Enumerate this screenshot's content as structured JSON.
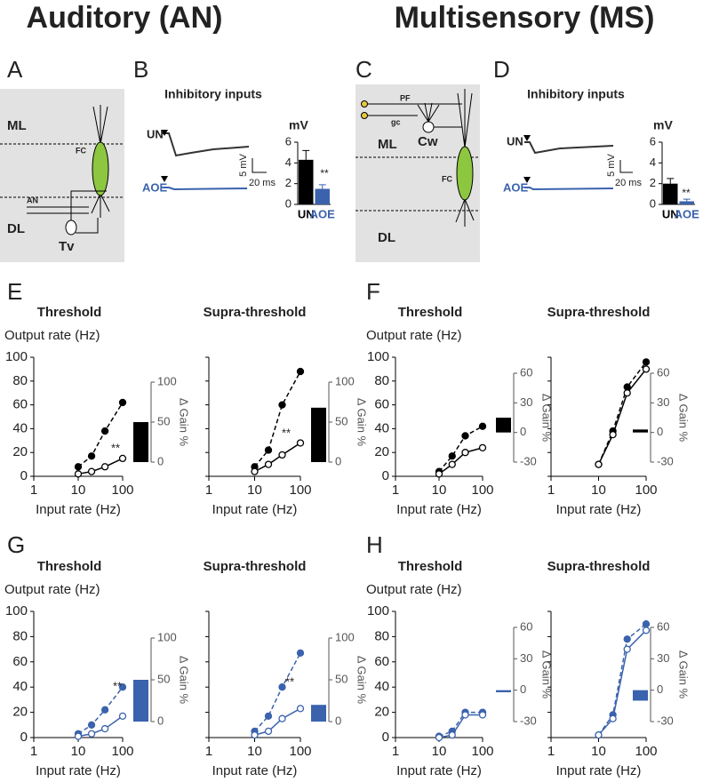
{
  "headings": [
    "Auditory (AN)",
    "Multisensory (MS)"
  ],
  "panels": [
    "A",
    "B",
    "C",
    "D",
    "E",
    "F",
    "G",
    "H"
  ],
  "panel_a": {
    "ml": "ML",
    "dl": "DL",
    "fc": "FC",
    "an": "AN",
    "tv": "Tv"
  },
  "panel_c": {
    "pf": "PF",
    "gc": "gc",
    "cw": "Cw",
    "ml": "ML",
    "dl": "DL",
    "fc": "FC"
  },
  "chart_data": [
    {
      "type": "bar",
      "title": "Inhibitory inputs",
      "ylabel": "mV",
      "categories": [
        "UN",
        "AOE"
      ],
      "values": [
        4.3,
        1.5
      ],
      "errors": [
        0.9,
        0.4
      ],
      "colors": [
        "#000000",
        "#3a62ad"
      ],
      "ylim": [
        0,
        6
      ],
      "yticks": [
        0,
        2,
        4,
        6
      ],
      "annotation": "**",
      "traces": {
        "labels": [
          "UN",
          "AOE"
        ],
        "scale_y": "5 mV",
        "scale_x": "20 ms"
      }
    },
    {
      "type": "bar",
      "title": "Inhibitory inputs",
      "ylabel": "mV",
      "categories": [
        "UN",
        "AOE"
      ],
      "values": [
        2.0,
        0.3
      ],
      "errors": [
        0.5,
        0.2
      ],
      "colors": [
        "#000000",
        "#3a62ad"
      ],
      "ylim": [
        0,
        6
      ],
      "yticks": [
        0,
        2,
        4,
        6
      ],
      "annotation": "**",
      "traces": {
        "labels": [
          "UN",
          "AOE"
        ],
        "scale_y": "5 mV",
        "scale_x": "20 ms"
      }
    },
    {
      "type": "line",
      "title": "Threshold",
      "ylabel": "Output rate (Hz)",
      "xlabel": "Input rate (Hz)",
      "log_x": true,
      "xlim": [
        1,
        100
      ],
      "xticks": [
        1,
        10,
        100
      ],
      "ylim": [
        0,
        100
      ],
      "yticks": [
        0,
        20,
        40,
        60,
        80,
        100
      ],
      "ytick_labels": true,
      "annotation": "**",
      "x": [
        10,
        20,
        40,
        100
      ],
      "series": [
        {
          "color": "#000000",
          "line_style": "dashed",
          "marker": "filled",
          "values": [
            8,
            17,
            38,
            62
          ]
        },
        {
          "color": "#000000",
          "line_style": "solid",
          "marker": "open",
          "values": [
            2,
            4,
            8,
            15
          ]
        }
      ],
      "inset": {
        "ylabel": "Δ Gain %",
        "ylim": [
          0,
          100
        ],
        "yticks": [
          0,
          50,
          100
        ],
        "values": [
          50
        ],
        "color": "#000000"
      }
    },
    {
      "type": "line",
      "title": "Supra-threshold",
      "xlabel": "Input rate (Hz)",
      "log_x": true,
      "xlim": [
        1,
        100
      ],
      "xticks": [
        1,
        10,
        100
      ],
      "ylim": [
        0,
        100
      ],
      "yticks": [
        0,
        20,
        40,
        60,
        80,
        100
      ],
      "ytick_labels": false,
      "annotation": "**",
      "x": [
        10,
        20,
        40,
        100
      ],
      "series": [
        {
          "color": "#000000",
          "line_style": "dashed",
          "marker": "filled",
          "values": [
            8,
            22,
            60,
            88
          ]
        },
        {
          "color": "#000000",
          "line_style": "solid",
          "marker": "open",
          "values": [
            4,
            10,
            18,
            28
          ]
        }
      ],
      "inset": {
        "ylabel": "Δ Gain %",
        "ylim": [
          0,
          100
        ],
        "yticks": [
          0,
          50,
          100
        ],
        "values": [
          68
        ],
        "color": "#000000"
      }
    },
    {
      "type": "line",
      "title": "Threshold",
      "ylabel": "Output rate (Hz)",
      "xlabel": "Input rate (Hz)",
      "log_x": true,
      "xlim": [
        1,
        100
      ],
      "xticks": [
        1,
        10,
        100
      ],
      "ylim": [
        0,
        100
      ],
      "yticks": [
        0,
        20,
        40,
        60,
        80,
        100
      ],
      "ytick_labels": true,
      "x": [
        10,
        20,
        40,
        100
      ],
      "series": [
        {
          "color": "#000000",
          "line_style": "dashed",
          "marker": "filled",
          "values": [
            4,
            17,
            34,
            42
          ]
        },
        {
          "color": "#000000",
          "line_style": "solid",
          "marker": "open",
          "values": [
            2,
            10,
            20,
            24
          ]
        }
      ],
      "inset": {
        "ylabel": "Δ Gain %",
        "ylim": [
          -30,
          60
        ],
        "yticks": [
          -30,
          0,
          30,
          60
        ],
        "values": [
          15
        ],
        "color": "#000000"
      }
    },
    {
      "type": "line",
      "title": "Supra-threshold",
      "xlabel": "Input rate (Hz)",
      "log_x": true,
      "xlim": [
        1,
        100
      ],
      "xticks": [
        1,
        10,
        100
      ],
      "ylim": [
        0,
        100
      ],
      "yticks": [
        0,
        20,
        40,
        60,
        80,
        100
      ],
      "ytick_labels": false,
      "x": [
        10,
        20,
        40,
        100
      ],
      "series": [
        {
          "color": "#000000",
          "line_style": "dashed",
          "marker": "filled",
          "values": [
            10,
            38,
            75,
            96
          ]
        },
        {
          "color": "#000000",
          "line_style": "solid",
          "marker": "open",
          "values": [
            10,
            35,
            70,
            90
          ]
        }
      ],
      "inset": {
        "ylabel": "Δ Gain %",
        "ylim": [
          -30,
          60
        ],
        "yticks": [
          -30,
          0,
          30,
          60
        ],
        "values": [
          3
        ],
        "color": "#000000"
      }
    },
    {
      "type": "line",
      "title": "Threshold",
      "ylabel": "Output rate (Hz)",
      "xlabel": "Input rate (Hz)",
      "log_x": true,
      "xlim": [
        1,
        100
      ],
      "xticks": [
        1,
        10,
        100
      ],
      "ylim": [
        0,
        100
      ],
      "yticks": [
        0,
        20,
        40,
        60,
        80,
        100
      ],
      "ytick_labels": true,
      "annotation": "**",
      "x": [
        10,
        20,
        40,
        100
      ],
      "series": [
        {
          "color": "#3a62ad",
          "line_style": "dashed",
          "marker": "filled",
          "values": [
            3,
            10,
            22,
            40
          ]
        },
        {
          "color": "#3a62ad",
          "line_style": "solid",
          "marker": "open",
          "values": [
            1,
            3,
            7,
            17
          ]
        }
      ],
      "inset": {
        "ylabel": "Δ Gain %",
        "ylim": [
          0,
          100
        ],
        "yticks": [
          0,
          50,
          100
        ],
        "values": [
          50
        ],
        "color": "#3a62ad"
      }
    },
    {
      "type": "line",
      "title": "Supra-threshold",
      "xlabel": "Input rate (Hz)",
      "log_x": true,
      "xlim": [
        1,
        100
      ],
      "xticks": [
        1,
        10,
        100
      ],
      "ylim": [
        0,
        100
      ],
      "yticks": [
        0,
        20,
        40,
        60,
        80,
        100
      ],
      "ytick_labels": false,
      "annotation": "**",
      "x": [
        10,
        20,
        40,
        100
      ],
      "series": [
        {
          "color": "#3a62ad",
          "line_style": "dashed",
          "marker": "filled",
          "values": [
            5,
            17,
            40,
            67
          ]
        },
        {
          "color": "#3a62ad",
          "line_style": "solid",
          "marker": "open",
          "values": [
            2,
            5,
            15,
            23
          ]
        }
      ],
      "inset": {
        "ylabel": "Δ Gain %",
        "ylim": [
          0,
          100
        ],
        "yticks": [
          0,
          50,
          100
        ],
        "values": [
          20
        ],
        "color": "#3a62ad"
      }
    },
    {
      "type": "line",
      "title": "Threshold",
      "ylabel": "Output rate (Hz)",
      "xlabel": "Input rate (Hz)",
      "log_x": true,
      "xlim": [
        1,
        100
      ],
      "xticks": [
        1,
        10,
        100
      ],
      "ylim": [
        0,
        100
      ],
      "yticks": [
        0,
        20,
        40,
        60,
        80,
        100
      ],
      "ytick_labels": true,
      "x": [
        10,
        20,
        40,
        100
      ],
      "series": [
        {
          "color": "#3a62ad",
          "line_style": "dashed",
          "marker": "filled",
          "values": [
            1,
            5,
            20,
            20
          ]
        },
        {
          "color": "#3a62ad",
          "line_style": "solid",
          "marker": "open",
          "values": [
            0,
            2,
            18,
            18
          ]
        }
      ],
      "inset": {
        "ylabel": "Δ Gain %",
        "ylim": [
          -30,
          60
        ],
        "yticks": [
          -30,
          0,
          30,
          60
        ],
        "values": [
          -2
        ],
        "color": "#3a62ad"
      }
    },
    {
      "type": "line",
      "title": "Supra-threshold",
      "xlabel": "Input rate (Hz)",
      "log_x": true,
      "xlim": [
        1,
        100
      ],
      "xticks": [
        1,
        10,
        100
      ],
      "ylim": [
        0,
        100
      ],
      "yticks": [
        0,
        20,
        40,
        60,
        80,
        100
      ],
      "ytick_labels": false,
      "x": [
        10,
        20,
        40,
        100
      ],
      "series": [
        {
          "color": "#3a62ad",
          "line_style": "dashed",
          "marker": "filled",
          "values": [
            2,
            18,
            78,
            90
          ]
        },
        {
          "color": "#3a62ad",
          "line_style": "solid",
          "marker": "open",
          "values": [
            2,
            15,
            70,
            85
          ]
        }
      ],
      "inset": {
        "ylabel": "Δ Gain %",
        "ylim": [
          -30,
          60
        ],
        "yticks": [
          -30,
          0,
          30,
          60
        ],
        "values": [
          -10
        ],
        "color": "#3a62ad"
      }
    }
  ]
}
